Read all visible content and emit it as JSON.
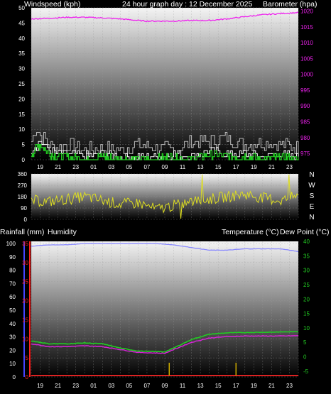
{
  "header": {
    "windspeed_label": "Windspeed (kph)",
    "graph_title": "24 hour graph day : 12 December 2025",
    "barometer_label": "Barometer (hpa)"
  },
  "panel3_header": {
    "rainfall_label": "Rainfall (mm)",
    "humidity_label": "Humidity",
    "temperature_label": "Temperature (°C)",
    "dewpoint_label": "Dew Point (°C)"
  },
  "x_tick_labels": [
    "19",
    "21",
    "23",
    "01",
    "03",
    "05",
    "07",
    "09",
    "11",
    "13",
    "15",
    "17",
    "19",
    "21",
    "23"
  ],
  "colors": {
    "wind_gust": "#bbbbbb",
    "wind_avg": "#ffffff",
    "wind_green": "#22cc22",
    "barometer": "#ee22ee",
    "wind_direction": "#dddd22",
    "humidity": "#8888ff",
    "temperature": "#dd22dd",
    "dew_point": "#22cc22",
    "rainfall": "#dd2222",
    "rain_bars": "#ccaa00",
    "left_axis_blue": "#4444ff",
    "left_axis_red": "#ff2222"
  },
  "chart_data": [
    {
      "type": "line",
      "title": "24 hour graph day : 12 December 2025",
      "x_range": [
        "18:00",
        "00:00 (+1 day)"
      ],
      "left_axis": {
        "label": "Windspeed (kph)",
        "ticks": [
          "0",
          "5",
          "10",
          "15",
          "20",
          "25",
          "30",
          "35",
          "40",
          "45",
          "50"
        ],
        "ylim": [
          0,
          50
        ]
      },
      "right_axis": {
        "label": "Barometer (hpa)",
        "ticks": [
          "975",
          "980",
          "985",
          "990",
          "995",
          "1000",
          "1005",
          "1010",
          "1015",
          "1020"
        ],
        "ylim": [
          973,
          1021
        ]
      },
      "series": [
        {
          "name": "Barometer (hpa)",
          "axis": "right",
          "x": [
            18,
            20,
            22,
            24,
            26,
            28,
            30,
            31,
            32,
            34,
            36,
            38,
            40,
            42,
            44,
            46,
            48
          ],
          "y": [
            1017.5,
            1017.7,
            1018,
            1018,
            1017.8,
            1017.5,
            1017,
            1016.8,
            1016.8,
            1016.8,
            1017,
            1017,
            1017.5,
            1018.2,
            1018.8,
            1019.2,
            1019.5
          ]
        },
        {
          "name": "Windspeed (kph)",
          "axis": "left",
          "x": [
            18,
            19,
            20,
            21,
            22,
            24,
            26,
            28,
            30,
            32,
            34,
            36,
            38,
            40,
            42,
            44,
            46,
            48
          ],
          "y": [
            3,
            6,
            3,
            2,
            2,
            1,
            2,
            1,
            1,
            1,
            2,
            1,
            3,
            2,
            2,
            1,
            2,
            1
          ]
        },
        {
          "name": "Wind gust (kph)",
          "axis": "left",
          "x": [
            18,
            18.5,
            19,
            20,
            21,
            22,
            24,
            26,
            28,
            30,
            32,
            34,
            36,
            38,
            40,
            42,
            44,
            46,
            48
          ],
          "y": [
            6,
            11,
            8,
            5,
            4,
            5,
            3,
            4,
            3,
            5,
            4,
            3,
            6,
            6,
            7,
            5,
            6,
            5,
            4
          ]
        }
      ]
    },
    {
      "type": "line",
      "left_axis": {
        "ticks": [
          "0",
          "90",
          "180",
          "270",
          "360"
        ],
        "ylim": [
          0,
          360
        ]
      },
      "right_labels": [
        "N",
        "W",
        "S",
        "E",
        "N"
      ],
      "series": [
        {
          "name": "Wind direction (°)",
          "x": [
            18,
            20,
            22,
            24,
            26,
            28,
            30,
            32,
            34,
            36,
            38,
            40,
            42,
            44,
            46,
            48
          ],
          "y": [
            150,
            140,
            160,
            180,
            150,
            120,
            130,
            80,
            110,
            140,
            160,
            180,
            200,
            170,
            150,
            190
          ]
        }
      ]
    },
    {
      "type": "line",
      "left_axes": [
        {
          "label": "Humidity",
          "ticks": [
            "0",
            "10",
            "20",
            "30",
            "40",
            "50",
            "60",
            "70",
            "80",
            "90",
            "100"
          ],
          "ylim": [
            0,
            100
          ]
        },
        {
          "label": "Rainfall (mm)",
          "ticks": [
            "0",
            "5",
            "10",
            "15",
            "20",
            "25",
            "30",
            "35"
          ],
          "ylim": [
            0,
            35
          ]
        }
      ],
      "right_axis": {
        "label": "Temperature (°C) Dew Point (°C)",
        "ticks": [
          "-5",
          "0",
          "5",
          "10",
          "15",
          "20",
          "25",
          "30",
          "35",
          "40"
        ],
        "ylim": [
          -7,
          40
        ]
      },
      "series": [
        {
          "name": "Humidity",
          "axis": "humidity",
          "x": [
            18,
            20,
            22,
            24,
            26,
            28,
            30,
            32,
            34,
            36,
            38,
            40,
            42,
            44,
            46,
            48
          ],
          "y": [
            98,
            99,
            99,
            100,
            100,
            100,
            100,
            100,
            99,
            97,
            95,
            95,
            96,
            96,
            96,
            94
          ]
        },
        {
          "name": "Temperature (°C)",
          "axis": "right",
          "x": [
            18,
            20,
            22,
            24,
            26,
            28,
            30,
            32,
            33,
            34,
            36,
            38,
            40,
            42,
            44,
            46,
            48
          ],
          "y": [
            4.5,
            3.5,
            3.5,
            3.8,
            3.5,
            2.5,
            1.5,
            1.3,
            1.2,
            2.5,
            5,
            6.5,
            7,
            7.2,
            7.2,
            7.2,
            7.3
          ]
        },
        {
          "name": "Dew Point (°C)",
          "axis": "right",
          "x": [
            18,
            20,
            22,
            24,
            26,
            28,
            30,
            32,
            33,
            34,
            36,
            38,
            40,
            42,
            44,
            46,
            48
          ],
          "y": [
            5.5,
            4.5,
            4.5,
            4.8,
            4.5,
            3,
            2,
            1.8,
            1.7,
            3,
            6,
            7.8,
            8.3,
            8.4,
            8.5,
            8.6,
            8.7
          ]
        },
        {
          "name": "Rainfall (mm)",
          "axis": "rain",
          "x": [
            18,
            48
          ],
          "y": [
            0,
            0
          ]
        }
      ],
      "rain_events": [
        {
          "x": 33.5,
          "y": 1.5
        },
        {
          "x": 41,
          "y": 1.5
        }
      ]
    }
  ]
}
